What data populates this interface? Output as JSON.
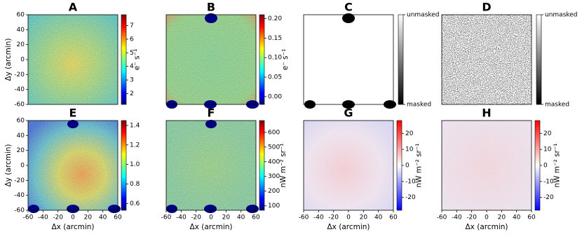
{
  "chart_data": [
    {
      "type": "heatmap",
      "title": "A",
      "ylabel": "Δy (arcmin)",
      "xlim": [
        -60,
        60
      ],
      "ylim": [
        -60,
        60
      ],
      "yticks": [
        60,
        40,
        20,
        0,
        -20,
        -40,
        -60
      ],
      "colorbar": {
        "clim": [
          1.2,
          7.8
        ],
        "ticks": [
          2,
          3,
          4,
          5,
          6,
          7
        ],
        "label": "e⁻ s⁻¹",
        "colormap": "jet"
      }
    },
    {
      "type": "heatmap",
      "title": "B",
      "xlim": [
        -60,
        60
      ],
      "ylim": [
        -60,
        60
      ],
      "colorbar": {
        "clim": [
          -0.02,
          0.21
        ],
        "ticks": [
          {
            "value": 0,
            "label": "0.00"
          },
          0.05,
          {
            "value": 0.1,
            "label": "0.10"
          },
          0.15,
          {
            "value": 0.2,
            "label": "0.20"
          }
        ],
        "label": "e⁻ s⁻¹",
        "colormap": "jet"
      }
    },
    {
      "type": "heatmap",
      "title": "C",
      "xlim": [
        -60,
        60
      ],
      "ylim": [
        -60,
        60
      ],
      "colorbar": {
        "clim": [
          0,
          1
        ],
        "ticks": [
          {
            "value": 1,
            "label": "unmasked"
          },
          {
            "value": 0,
            "label": "masked"
          }
        ],
        "colormap": "gray"
      }
    },
    {
      "type": "heatmap",
      "title": "D",
      "xlim": [
        -60,
        60
      ],
      "ylim": [
        -60,
        60
      ],
      "colorbar": {
        "clim": [
          0,
          1
        ],
        "ticks": [
          {
            "value": 1,
            "label": "unmasked"
          },
          {
            "value": 0,
            "label": "masked"
          }
        ],
        "colormap": "gray"
      }
    },
    {
      "type": "heatmap",
      "title": "E",
      "ylabel": "Δy (arcmin)",
      "xlabel": "Δx (arcmin)",
      "xlim": [
        -60,
        60
      ],
      "ylim": [
        -60,
        60
      ],
      "xticks": [
        -60,
        -40,
        -20,
        0,
        20,
        40,
        60
      ],
      "yticks": [
        60,
        40,
        20,
        0,
        -20,
        -40,
        -60
      ],
      "colorbar": {
        "clim": [
          0.53,
          1.45
        ],
        "ticks": [
          0.6,
          0.8,
          {
            "value": 1,
            "label": "1.0"
          },
          1.2,
          1.4
        ],
        "colormap": "jet"
      }
    },
    {
      "type": "heatmap",
      "title": "F",
      "xlabel": "Δx (arcmin)",
      "xlim": [
        -60,
        60
      ],
      "ylim": [
        -60,
        60
      ],
      "xticks": [
        -60,
        -40,
        -20,
        0,
        20,
        40,
        60
      ],
      "colorbar": {
        "clim": [
          70,
          680
        ],
        "ticks": [
          100,
          200,
          300,
          400,
          500,
          600
        ],
        "label": "nW m⁻² sr⁻¹",
        "colormap": "jet"
      }
    },
    {
      "type": "heatmap",
      "title": "G",
      "xlabel": "Δx (arcmin)",
      "xlim": [
        -60,
        60
      ],
      "ylim": [
        -60,
        60
      ],
      "xticks": [
        -60,
        -40,
        -20,
        0,
        20,
        40,
        60
      ],
      "colorbar": {
        "clim": [
          -28,
          28
        ],
        "ticks": [
          20,
          10,
          0,
          -10,
          -20
        ],
        "label": "nW m⁻² sr⁻¹",
        "colormap": "bwr"
      }
    },
    {
      "type": "heatmap",
      "title": "H",
      "xlabel": "Δx (arcmin)",
      "xlim": [
        -60,
        60
      ],
      "ylim": [
        -60,
        60
      ],
      "xticks": [
        -60,
        -40,
        -20,
        0,
        20,
        40,
        60
      ],
      "colorbar": {
        "clim": [
          -28,
          28
        ],
        "ticks": [
          20,
          10,
          0,
          -10,
          -20
        ],
        "label": "nW m⁻² sr⁻¹",
        "colormap": "bwr"
      }
    }
  ]
}
